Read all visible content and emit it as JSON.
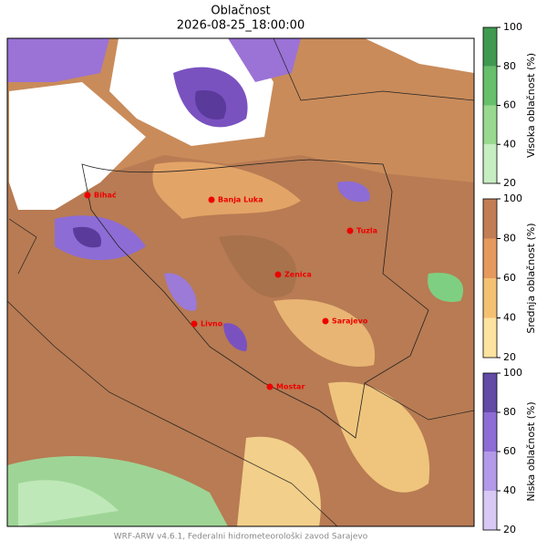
{
  "title": "Oblačnost",
  "subtitle": "2026-08-25_18:00:00",
  "cities": [
    "Bihać",
    "Banja Luka",
    "Tuzla",
    "Zenica",
    "Sarajevo",
    "Livno",
    "Mostar"
  ],
  "colorbars": [
    {
      "label": "Visoka oblačnost (%)",
      "lim": [
        20,
        100
      ],
      "ticks": [
        20,
        40,
        60,
        80,
        100
      ],
      "colors": [
        "#c7edc3",
        "#98d98f",
        "#66bf6a",
        "#3f9a4f"
      ]
    },
    {
      "label": "Srednja oblačnost (%)",
      "lim": [
        20,
        100
      ],
      "ticks": [
        20,
        40,
        60,
        80,
        100
      ],
      "colors": [
        "#fde3a0",
        "#f4c172",
        "#e6995c",
        "#c27d55"
      ]
    },
    {
      "label": "Niska oblačnost (%)",
      "lim": [
        20,
        100
      ],
      "ticks": [
        20,
        40,
        60,
        80,
        100
      ],
      "colors": [
        "#d8c8f4",
        "#b39ae8",
        "#8d6cd6",
        "#624aa6"
      ]
    }
  ],
  "footer": "WRF-ARW v4.6.1, Federalni hidrometeorološki zavod Sarajevo"
}
